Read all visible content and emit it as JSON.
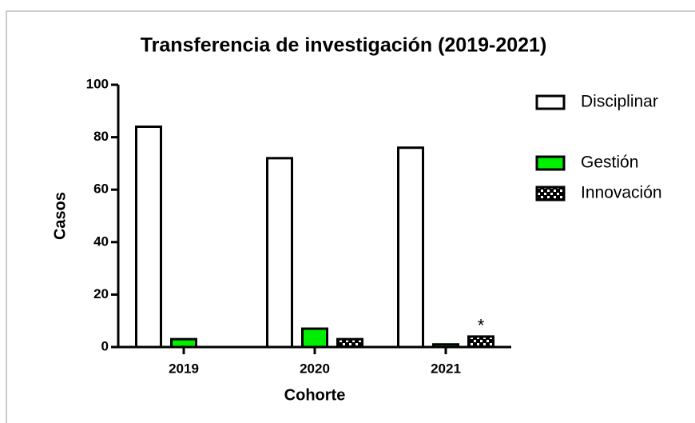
{
  "chart_data": {
    "type": "bar",
    "title": "Transferencia de investigación (2019-2021)",
    "xlabel": "Cohorte",
    "ylabel": "Casos",
    "categories": [
      "2019",
      "2020",
      "2021"
    ],
    "series": [
      {
        "name": "Disciplinar",
        "color": "#ffffff",
        "values": [
          84,
          72,
          76
        ]
      },
      {
        "name": "Gestión",
        "color": "#00ee00",
        "values": [
          3,
          7,
          1
        ]
      },
      {
        "name": "Innovación",
        "color": "#000000",
        "pattern": "checker",
        "values": [
          0,
          3,
          4
        ]
      }
    ],
    "annotations": [
      {
        "text": "*",
        "series": 2,
        "category": 2
      }
    ],
    "ylim": [
      0,
      100
    ],
    "yticks": [
      0,
      20,
      40,
      60,
      80,
      100
    ],
    "legend": "right"
  }
}
